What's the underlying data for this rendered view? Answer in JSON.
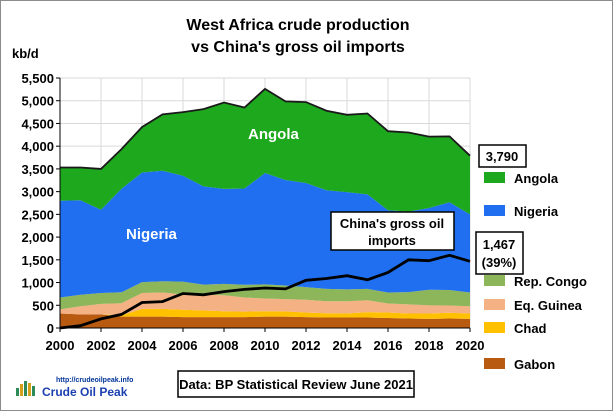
{
  "chart_data": {
    "type": "area",
    "title_line1": "West Africa crude production",
    "title_line2": "vs China's gross oil imports",
    "ylabel": "kb/d",
    "ylim": [
      0,
      5500
    ],
    "yticks": [
      0,
      500,
      1000,
      1500,
      2000,
      2500,
      3000,
      3500,
      4000,
      4500,
      5000,
      5500
    ],
    "ytick_labels": [
      "0",
      "500",
      "1,000",
      "1,500",
      "2,000",
      "2,500",
      "3,000",
      "3,500",
      "4,000",
      "4,500",
      "5,000",
      "5,500"
    ],
    "xlim": [
      2000,
      2020
    ],
    "xticks": [
      2000,
      2002,
      2004,
      2006,
      2008,
      2010,
      2012,
      2014,
      2016,
      2018,
      2020
    ],
    "grid": true,
    "x": [
      2000,
      2001,
      2002,
      2003,
      2004,
      2005,
      2006,
      2007,
      2008,
      2009,
      2010,
      2011,
      2012,
      2013,
      2014,
      2015,
      2016,
      2017,
      2018,
      2019,
      2020
    ],
    "stack_order": [
      "Gabon",
      "Chad",
      "Eq. Guinea",
      "Rep. Congo",
      "Nigeria",
      "Angola"
    ],
    "series": [
      {
        "name": "Gabon",
        "color": "#b85a10",
        "values": [
          320,
          300,
          300,
          250,
          250,
          250,
          240,
          240,
          240,
          240,
          250,
          250,
          240,
          230,
          230,
          230,
          220,
          210,
          200,
          210,
          200
        ]
      },
      {
        "name": "Chad",
        "color": "#ffc000",
        "values": [
          0,
          0,
          0,
          30,
          170,
          170,
          160,
          145,
          130,
          120,
          120,
          115,
          100,
          95,
          90,
          120,
          120,
          110,
          120,
          125,
          120
        ]
      },
      {
        "name": "Eq. Guinea",
        "color": "#f4b183",
        "values": [
          90,
          180,
          230,
          265,
          350,
          360,
          340,
          350,
          350,
          310,
          280,
          270,
          280,
          265,
          270,
          260,
          200,
          200,
          180,
          160,
          160
        ]
      },
      {
        "name": "Rep. Congo",
        "color": "#8db55a",
        "values": [
          260,
          250,
          240,
          240,
          240,
          250,
          280,
          220,
          250,
          280,
          310,
          300,
          280,
          270,
          260,
          250,
          240,
          270,
          340,
          340,
          300
        ]
      },
      {
        "name": "Nigeria",
        "color": "#1f6ff0",
        "values": [
          2130,
          2080,
          1830,
          2280,
          2410,
          2430,
          2330,
          2160,
          2090,
          2120,
          2450,
          2320,
          2290,
          2170,
          2140,
          2080,
          1810,
          1770,
          1800,
          1930,
          1720
        ]
      },
      {
        "name": "Angola",
        "color": "#1ea81e",
        "values": [
          730,
          720,
          900,
          870,
          1000,
          1240,
          1400,
          1700,
          1900,
          1780,
          1850,
          1730,
          1780,
          1750,
          1700,
          1780,
          1740,
          1740,
          1570,
          1450,
          1290
        ]
      }
    ],
    "line_series": {
      "name": "China's gross oil imports",
      "color": "#000000",
      "values": [
        0,
        50,
        200,
        300,
        560,
        580,
        760,
        730,
        800,
        850,
        880,
        860,
        1050,
        1090,
        1150,
        1060,
        1220,
        1500,
        1480,
        1600,
        1467
      ]
    },
    "total_2020": 3790
  },
  "labels": {
    "angola_area": "Angola",
    "nigeria_area": "Nigeria",
    "callout_total": "3,790",
    "callout_china_line1": "China's gross oil",
    "callout_china_line2": "imports",
    "callout_imports_value": "1,467",
    "callout_imports_pct": "(39%)",
    "source": "Data: BP Statistical Review June 2021"
  },
  "legend": [
    {
      "name": "Angola",
      "color": "#1ea81e"
    },
    {
      "name": "Nigeria",
      "color": "#1f6ff0"
    },
    {
      "name": "Rep. Congo",
      "color": "#8db55a"
    },
    {
      "name": "Eq. Guinea",
      "color": "#f4b183"
    },
    {
      "name": "Chad",
      "color": "#ffc000"
    },
    {
      "name": "Gabon",
      "color": "#b85a10"
    }
  ],
  "logo": {
    "url": "http://crudeoilpeak.info",
    "name": "Crude Oil Peak"
  }
}
